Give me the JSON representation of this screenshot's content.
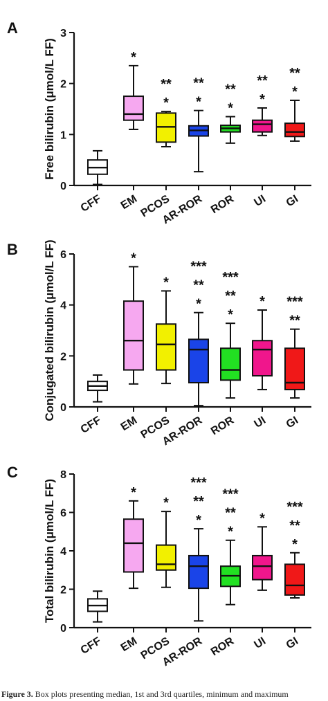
{
  "caption": {
    "label": "Figure 3.",
    "text": "Box plots presenting median, 1st and 3rd quartiles, minimum and maximum"
  },
  "chart_data": [
    {
      "type": "box",
      "panel_label": "A",
      "ylabel": "Free bilirubin (μmol/L FF)",
      "xlabel": "",
      "ylim": [
        0,
        3
      ],
      "yticks": [
        "0",
        "1",
        "2",
        "3"
      ],
      "grid": false,
      "categories": [
        "CFF",
        "EM",
        "PCOS",
        "AR-ROR",
        "ROR",
        "UI",
        "GI"
      ],
      "boxes": [
        {
          "min": 0.02,
          "q1": 0.22,
          "median": 0.35,
          "q3": 0.5,
          "max": 0.68
        },
        {
          "min": 1.1,
          "q1": 1.28,
          "median": 1.4,
          "q3": 1.75,
          "max": 2.35
        },
        {
          "min": 0.76,
          "q1": 0.85,
          "median": 1.15,
          "q3": 1.42,
          "max": 1.45
        },
        {
          "min": 0.27,
          "q1": 0.97,
          "median": 1.08,
          "q3": 1.17,
          "max": 1.47
        },
        {
          "min": 0.83,
          "q1": 1.05,
          "median": 1.12,
          "q3": 1.18,
          "max": 1.35
        },
        {
          "min": 0.98,
          "q1": 1.05,
          "median": 1.2,
          "q3": 1.28,
          "max": 1.52
        },
        {
          "min": 0.87,
          "q1": 0.96,
          "median": 1.05,
          "q3": 1.22,
          "max": 1.67
        }
      ],
      "colors": [
        "#ffffff",
        "#f6a8f0",
        "#f2f000",
        "#1a44e8",
        "#22e022",
        "#f0168c",
        "#f01818"
      ],
      "annotations": [
        {
          "category": "EM",
          "stars": [
            "*"
          ]
        },
        {
          "category": "PCOS",
          "stars": [
            "**",
            "*"
          ]
        },
        {
          "category": "AR-ROR",
          "stars": [
            "**",
            "*"
          ]
        },
        {
          "category": "ROR",
          "stars": [
            "**",
            "*"
          ]
        },
        {
          "category": "UI",
          "stars": [
            "**",
            "*"
          ]
        },
        {
          "category": "GI",
          "stars": [
            "**",
            "*"
          ]
        }
      ]
    },
    {
      "type": "box",
      "panel_label": "B",
      "ylabel": "Conjugated bilirubin (μmol/L FF)",
      "xlabel": "",
      "ylim": [
        0,
        6
      ],
      "yticks": [
        "0",
        "2",
        "4",
        "6"
      ],
      "grid": false,
      "categories": [
        "CFF",
        "EM",
        "PCOS",
        "AR-ROR",
        "ROR",
        "UI",
        "GI"
      ],
      "boxes": [
        {
          "min": 0.2,
          "q1": 0.65,
          "median": 0.82,
          "q3": 1.0,
          "max": 1.25
        },
        {
          "min": 0.9,
          "q1": 1.45,
          "median": 2.6,
          "q3": 4.15,
          "max": 5.5
        },
        {
          "min": 0.92,
          "q1": 1.45,
          "median": 2.45,
          "q3": 3.25,
          "max": 4.55
        },
        {
          "min": 0.05,
          "q1": 0.95,
          "median": 2.25,
          "q3": 2.65,
          "max": 3.7
        },
        {
          "min": 0.35,
          "q1": 1.05,
          "median": 1.45,
          "q3": 2.3,
          "max": 3.28
        },
        {
          "min": 0.68,
          "q1": 1.22,
          "median": 2.25,
          "q3": 2.6,
          "max": 3.8
        },
        {
          "min": 0.35,
          "q1": 0.68,
          "median": 0.95,
          "q3": 2.3,
          "max": 3.05
        }
      ],
      "colors": [
        "#ffffff",
        "#f6a8f0",
        "#f2f000",
        "#1a44e8",
        "#22e022",
        "#f0168c",
        "#f01818"
      ],
      "annotations": [
        {
          "category": "EM",
          "stars": [
            "*"
          ]
        },
        {
          "category": "PCOS",
          "stars": [
            "*"
          ]
        },
        {
          "category": "AR-ROR",
          "stars": [
            "***",
            "**",
            "*"
          ]
        },
        {
          "category": "ROR",
          "stars": [
            "***",
            "**",
            "*"
          ]
        },
        {
          "category": "UI",
          "stars": [
            "*"
          ]
        },
        {
          "category": "GI",
          "stars": [
            "***",
            "**"
          ]
        }
      ]
    },
    {
      "type": "box",
      "panel_label": "C",
      "ylabel": "Total bilirubin (μmol/L FF)",
      "xlabel": "",
      "ylim": [
        0,
        8
      ],
      "yticks": [
        "0",
        "2",
        "4",
        "6",
        "8"
      ],
      "grid": false,
      "categories": [
        "CFF",
        "EM",
        "PCOS",
        "AR-ROR",
        "ROR",
        "UI",
        "GI"
      ],
      "boxes": [
        {
          "min": 0.3,
          "q1": 0.85,
          "median": 1.15,
          "q3": 1.5,
          "max": 1.9
        },
        {
          "min": 2.05,
          "q1": 2.9,
          "median": 4.4,
          "q3": 5.65,
          "max": 6.6
        },
        {
          "min": 2.1,
          "q1": 3.0,
          "median": 3.3,
          "q3": 4.3,
          "max": 6.05
        },
        {
          "min": 0.35,
          "q1": 2.05,
          "median": 3.2,
          "q3": 3.75,
          "max": 5.15
        },
        {
          "min": 1.2,
          "q1": 2.15,
          "median": 2.7,
          "q3": 3.2,
          "max": 4.55
        },
        {
          "min": 1.95,
          "q1": 2.5,
          "median": 3.2,
          "q3": 3.75,
          "max": 5.25
        },
        {
          "min": 1.55,
          "q1": 1.7,
          "median": 2.2,
          "q3": 3.3,
          "max": 3.9
        }
      ],
      "colors": [
        "#ffffff",
        "#f6a8f0",
        "#f2f000",
        "#1a44e8",
        "#22e022",
        "#f0168c",
        "#f01818"
      ],
      "annotations": [
        {
          "category": "EM",
          "stars": [
            "*"
          ]
        },
        {
          "category": "PCOS",
          "stars": [
            "*"
          ]
        },
        {
          "category": "AR-ROR",
          "stars": [
            "***",
            "**",
            "*"
          ]
        },
        {
          "category": "ROR",
          "stars": [
            "***",
            "**",
            "*"
          ]
        },
        {
          "category": "UI",
          "stars": [
            "*"
          ]
        },
        {
          "category": "GI",
          "stars": [
            "***",
            "**",
            "*"
          ]
        }
      ]
    }
  ]
}
